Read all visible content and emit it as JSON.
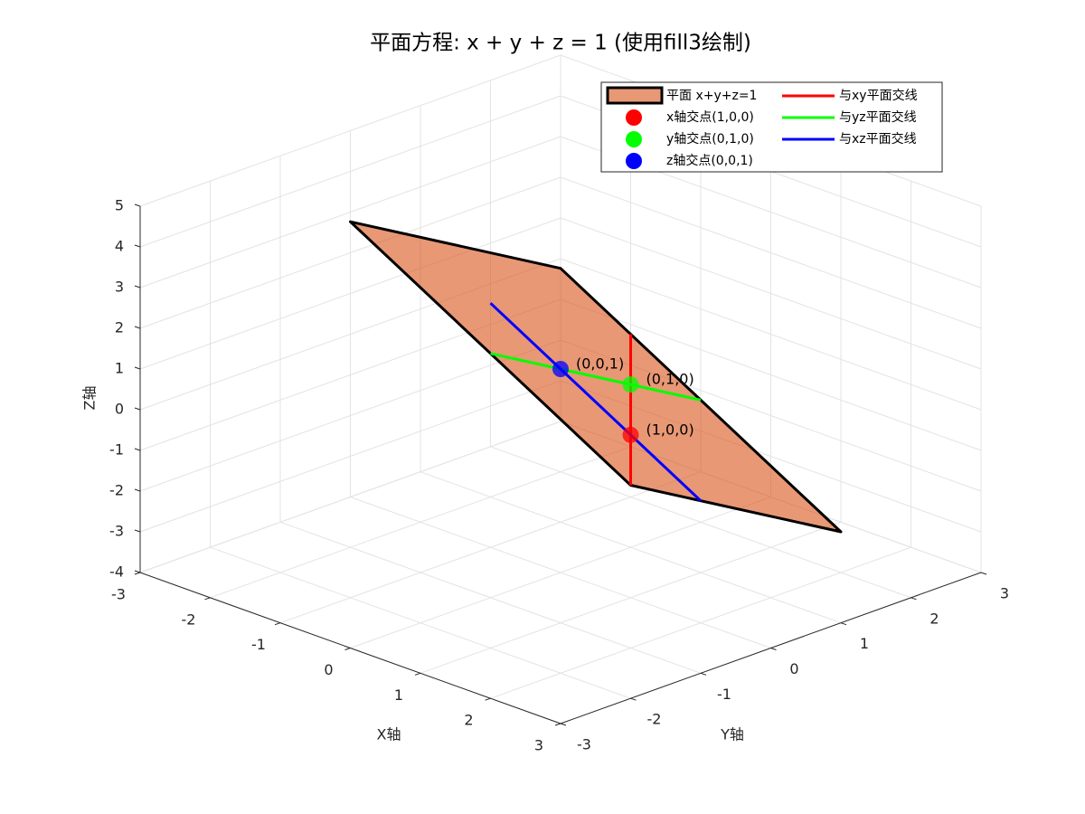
{
  "chart_data": {
    "type": "plot3",
    "title": "平面方程: x + y + z = 1 (使用fill3绘制)",
    "xlabel": "X轴",
    "ylabel": "Y轴",
    "zlabel": "Z轴",
    "xlim": [
      -3,
      3
    ],
    "ylim": [
      -3,
      3
    ],
    "zlim": [
      -4,
      5
    ],
    "xticks": [
      -3,
      -2,
      -1,
      0,
      1,
      2,
      3
    ],
    "yticks": [
      -3,
      -2,
      -1,
      0,
      1,
      2,
      3
    ],
    "zticks": [
      -4,
      -3,
      -2,
      -1,
      0,
      1,
      2,
      3,
      4,
      5
    ],
    "grid": true,
    "legend_position": "northeast",
    "patch": {
      "name": "平面 x+y+z=1",
      "color": "#d95319",
      "x": [
        -2,
        -2,
        2,
        2
      ],
      "y": [
        -1,
        2,
        2,
        -1
      ],
      "z": [
        4,
        1,
        -3,
        0
      ]
    },
    "points": [
      {
        "name": "x轴交点(1,0,0)",
        "color": "#ff0000",
        "x": 1,
        "y": 0,
        "z": 0,
        "label": "(1,0,0)"
      },
      {
        "name": "y轴交点(0,1,0)",
        "color": "#00ff00",
        "x": 0,
        "y": 1,
        "z": 0,
        "label": "(0,1,0)"
      },
      {
        "name": "z轴交点(0,0,1)",
        "color": "#0000ff",
        "x": 0,
        "y": 0,
        "z": 1,
        "label": "(0,0,1)"
      }
    ],
    "lines": [
      {
        "name": "与xy平面交线",
        "color": "#ff0000",
        "x": [
          -1,
          2
        ],
        "y": [
          2,
          -1
        ],
        "z": [
          0,
          0
        ]
      },
      {
        "name": "与yz平面交线",
        "color": "#00ff00",
        "x": [
          0,
          0
        ],
        "y": [
          -1,
          2
        ],
        "z": [
          2,
          -1
        ]
      },
      {
        "name": "与xz平面交线",
        "color": "#0000ff",
        "x": [
          -1,
          2
        ],
        "y": [
          0,
          0
        ],
        "z": [
          2,
          -1
        ]
      }
    ]
  }
}
